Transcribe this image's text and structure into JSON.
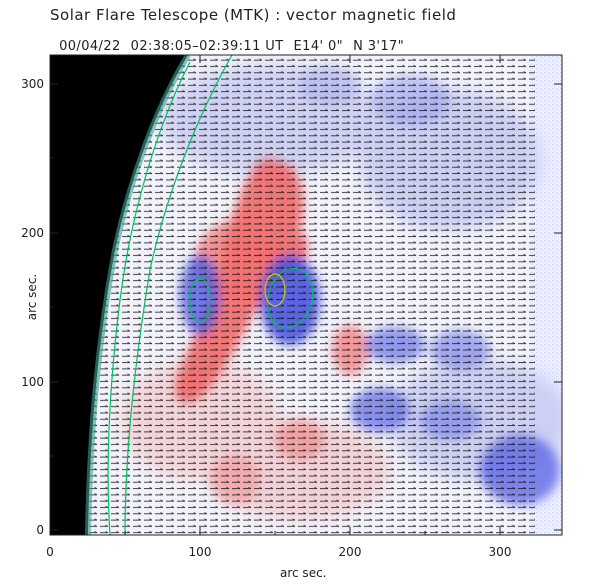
{
  "header": {
    "title": "Solar Flare Telescope (MTK) : vector magnetic field",
    "date": "00/04/22",
    "time_range": "02:38:05–02:39:11 UT",
    "longitude": "E14' 0\"",
    "latitude": "N 3'17\""
  },
  "axes": {
    "xlabel": "arc sec.",
    "ylabel": "arc sec.",
    "x_ticks": [
      "0",
      "100",
      "200",
      "300"
    ],
    "y_ticks": [
      "0",
      "100",
      "200",
      "300"
    ]
  },
  "colors": {
    "positive_polarity": "#f06060",
    "negative_polarity": "#4a55e0",
    "contour": "#00c060",
    "limb_background": "#000000",
    "vector": "#111111"
  }
}
